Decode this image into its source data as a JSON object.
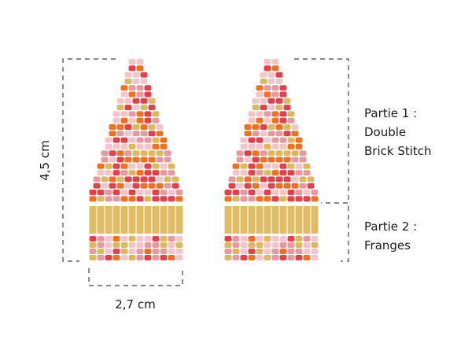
{
  "labels": {
    "height": "4,5 cm",
    "width": "2,7 cm",
    "part1": [
      "Partie 1 :",
      "Double",
      "Brick Stitch"
    ],
    "part2": [
      "Partie 2 :",
      "Franges"
    ]
  },
  "colors": {
    "palette": [
      "#e2404b",
      "#f37021",
      "#f2c5c9",
      "#e69aa0",
      "#dcb95e"
    ],
    "fringe": "#dfbd66",
    "dash": "#444444"
  }
}
